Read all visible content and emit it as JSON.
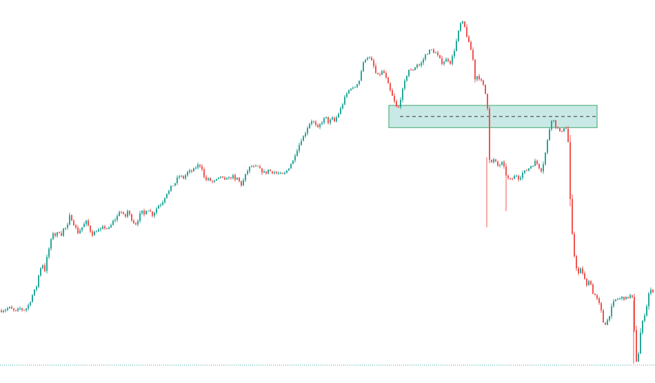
{
  "colors": {
    "background": "#ffffff",
    "up": "#26a69a",
    "down": "#ef5350",
    "zone_fill": "#26a69a",
    "zone_stroke": "#3aa36a",
    "zone_midline": "#333333",
    "baseline": "#26a69a"
  },
  "chart_data": {
    "type": "candlestick",
    "title": "",
    "xlabel": "",
    "ylabel": "",
    "ylim": [
      0,
      100
    ],
    "grid": false,
    "legend": "none",
    "price_path": [
      [
        0,
        15.2
      ],
      [
        8,
        15.6
      ],
      [
        12,
        16.1
      ],
      [
        18,
        15.3
      ],
      [
        22,
        14.9
      ],
      [
        28,
        15.8
      ],
      [
        33,
        15.3
      ],
      [
        38,
        16.0
      ],
      [
        41,
        17.0
      ],
      [
        46,
        19.5
      ],
      [
        52,
        22.0
      ],
      [
        56,
        26.0
      ],
      [
        60,
        28.5
      ],
      [
        64,
        26.5
      ],
      [
        68,
        31.0
      ],
      [
        72,
        34.0
      ],
      [
        76,
        37.0
      ],
      [
        80,
        36.0
      ],
      [
        84,
        37.5
      ],
      [
        88,
        36.5
      ],
      [
        92,
        38.5
      ],
      [
        96,
        38.0
      ],
      [
        100,
        41.5
      ],
      [
        104,
        40.5
      ],
      [
        108,
        38.5
      ],
      [
        112,
        37.0
      ],
      [
        116,
        38.0
      ],
      [
        120,
        39.0
      ],
      [
        124,
        40.0
      ],
      [
        128,
        38.5
      ],
      [
        132,
        36.5
      ],
      [
        136,
        37.0
      ],
      [
        140,
        37.8
      ],
      [
        144,
        37.5
      ],
      [
        148,
        38.3
      ],
      [
        152,
        38.5
      ],
      [
        156,
        37.8
      ],
      [
        160,
        39.0
      ],
      [
        164,
        40.5
      ],
      [
        168,
        41.0
      ],
      [
        172,
        43.0
      ],
      [
        176,
        42.5
      ],
      [
        180,
        41.0
      ],
      [
        184,
        43.0
      ],
      [
        188,
        41.5
      ],
      [
        192,
        40.0
      ],
      [
        196,
        39.5
      ],
      [
        200,
        41.0
      ],
      [
        204,
        43.0
      ],
      [
        208,
        42.0
      ],
      [
        212,
        44.0
      ],
      [
        216,
        43.0
      ],
      [
        220,
        42.0
      ],
      [
        224,
        43.0
      ],
      [
        228,
        44.5
      ],
      [
        232,
        45.0
      ],
      [
        236,
        46.0
      ],
      [
        240,
        48.0
      ],
      [
        244,
        48.5
      ],
      [
        248,
        50.0
      ],
      [
        252,
        50.5
      ],
      [
        256,
        52.0
      ],
      [
        260,
        53.0
      ],
      [
        264,
        52.0
      ],
      [
        268,
        53.0
      ],
      [
        272,
        54.0
      ],
      [
        276,
        54.0
      ],
      [
        280,
        54.5
      ],
      [
        284,
        55.5
      ],
      [
        288,
        56.0
      ],
      [
        292,
        55.0
      ],
      [
        296,
        51.5
      ],
      [
        300,
        52.0
      ],
      [
        304,
        51.5
      ],
      [
        308,
        51.0
      ],
      [
        312,
        51.5
      ],
      [
        316,
        52.0
      ],
      [
        320,
        53.0
      ],
      [
        324,
        51.0
      ],
      [
        328,
        52.5
      ],
      [
        332,
        52.0
      ],
      [
        336,
        53.0
      ],
      [
        340,
        51.5
      ],
      [
        344,
        52.5
      ],
      [
        348,
        50.0
      ],
      [
        352,
        51.5
      ],
      [
        356,
        53.5
      ],
      [
        360,
        55.0
      ],
      [
        364,
        55.5
      ],
      [
        368,
        55.0
      ],
      [
        372,
        55.5
      ],
      [
        376,
        54.5
      ],
      [
        380,
        54.0
      ],
      [
        384,
        53.5
      ],
      [
        388,
        54.5
      ],
      [
        392,
        54.0
      ],
      [
        396,
        54.0
      ],
      [
        400,
        53.5
      ],
      [
        404,
        53.5
      ],
      [
        408,
        53.0
      ],
      [
        412,
        53.5
      ],
      [
        416,
        54.5
      ],
      [
        420,
        56.0
      ],
      [
        424,
        57.0
      ],
      [
        428,
        59.5
      ],
      [
        432,
        61.0
      ],
      [
        436,
        63.0
      ],
      [
        440,
        64.0
      ],
      [
        444,
        66.0
      ],
      [
        448,
        67.5
      ],
      [
        452,
        68.5
      ],
      [
        456,
        67.0
      ],
      [
        460,
        66.0
      ],
      [
        464,
        67.5
      ],
      [
        468,
        68.5
      ],
      [
        472,
        69.0
      ],
      [
        476,
        67.5
      ],
      [
        480,
        69.0
      ],
      [
        484,
        68.0
      ],
      [
        488,
        69.5
      ],
      [
        492,
        71.0
      ],
      [
        496,
        73.0
      ],
      [
        500,
        75.0
      ],
      [
        504,
        76.5
      ],
      [
        508,
        77.5
      ],
      [
        512,
        77.0
      ],
      [
        516,
        78.5
      ],
      [
        520,
        79.5
      ],
      [
        524,
        83.0
      ],
      [
        528,
        85.5
      ],
      [
        532,
        86.0
      ],
      [
        536,
        85.5
      ],
      [
        540,
        84.0
      ],
      [
        544,
        81.5
      ],
      [
        548,
        80.5
      ],
      [
        552,
        82.0
      ],
      [
        556,
        81.5
      ],
      [
        560,
        79.5
      ],
      [
        564,
        77.0
      ],
      [
        568,
        75.0
      ],
      [
        572,
        73.0
      ],
      [
        576,
        71.0
      ],
      [
        580,
        74.5
      ],
      [
        584,
        77.5
      ],
      [
        588,
        80.5
      ],
      [
        592,
        82.5
      ],
      [
        596,
        82.0
      ],
      [
        600,
        83.0
      ],
      [
        604,
        84.0
      ],
      [
        608,
        83.5
      ],
      [
        612,
        85.0
      ],
      [
        616,
        86.5
      ],
      [
        620,
        87.5
      ],
      [
        624,
        88.0
      ],
      [
        628,
        87.5
      ],
      [
        632,
        87.0
      ],
      [
        636,
        85.5
      ],
      [
        640,
        84.5
      ],
      [
        644,
        85.0
      ],
      [
        648,
        85.5
      ],
      [
        652,
        84.5
      ],
      [
        656,
        86.5
      ],
      [
        660,
        89.5
      ],
      [
        664,
        93.0
      ],
      [
        668,
        96.0
      ],
      [
        672,
        95.0
      ],
      [
        676,
        92.0
      ],
      [
        680,
        89.0
      ],
      [
        684,
        87.0
      ],
      [
        688,
        80.0
      ],
      [
        692,
        81.0
      ],
      [
        696,
        79.5
      ],
      [
        700,
        78.0
      ],
      [
        704,
        75.0
      ],
      [
        706,
        72.0
      ],
      [
        708,
        58.0
      ],
      [
        712,
        56.5
      ],
      [
        716,
        57.5
      ],
      [
        720,
        55.5
      ],
      [
        724,
        56.0
      ],
      [
        728,
        56.5
      ],
      [
        732,
        53.5
      ],
      [
        736,
        52.0
      ],
      [
        740,
        51.5
      ],
      [
        744,
        52.5
      ],
      [
        748,
        53.0
      ],
      [
        752,
        52.0
      ],
      [
        756,
        53.5
      ],
      [
        760,
        54.0
      ],
      [
        764,
        54.5
      ],
      [
        768,
        55.5
      ],
      [
        772,
        56.0
      ],
      [
        776,
        57.0
      ],
      [
        780,
        55.5
      ],
      [
        784,
        54.5
      ],
      [
        788,
        57.0
      ],
      [
        792,
        61.5
      ],
      [
        796,
        66.0
      ],
      [
        800,
        69.5
      ],
      [
        804,
        67.0
      ],
      [
        808,
        66.0
      ],
      [
        812,
        64.5
      ],
      [
        816,
        66.5
      ],
      [
        820,
        66.0
      ],
      [
        824,
        61.0
      ],
      [
        826,
        46.0
      ],
      [
        830,
        33.0
      ],
      [
        834,
        28.0
      ],
      [
        838,
        25.5
      ],
      [
        842,
        27.0
      ],
      [
        846,
        24.5
      ],
      [
        850,
        22.0
      ],
      [
        854,
        24.5
      ],
      [
        858,
        20.5
      ],
      [
        862,
        19.5
      ],
      [
        866,
        18.0
      ],
      [
        870,
        16.0
      ],
      [
        874,
        12.0
      ],
      [
        878,
        11.5
      ],
      [
        882,
        13.5
      ],
      [
        886,
        16.0
      ],
      [
        890,
        18.0
      ],
      [
        894,
        18.5
      ],
      [
        898,
        18.5
      ],
      [
        902,
        19.0
      ],
      [
        906,
        18.5
      ],
      [
        910,
        19.0
      ],
      [
        914,
        19.5
      ],
      [
        918,
        18.0
      ],
      [
        920,
        1.0
      ],
      [
        924,
        1.5
      ],
      [
        928,
        9.0
      ],
      [
        932,
        13.0
      ],
      [
        936,
        15.5
      ],
      [
        940,
        20.0
      ],
      [
        944,
        21.0
      ],
      [
        948,
        20.5
      ]
    ],
    "zone": {
      "label": "",
      "x_start": 564,
      "x_end": 866,
      "y_top": 72.5,
      "y_bottom": 66.3,
      "midline_y": 69.4
    },
    "baseline_level": 0
  }
}
